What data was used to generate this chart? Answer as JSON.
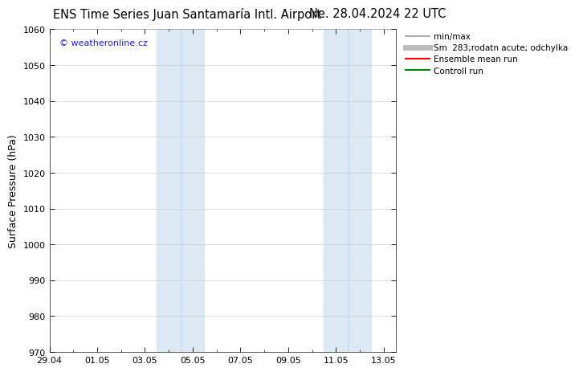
{
  "title_left": "ENS Time Series Juan Santamaría Intl. Airport",
  "title_right": "Ne. 28.04.2024 22 UTC",
  "ylabel": "Surface Pressure (hPa)",
  "ylim": [
    970,
    1060
  ],
  "yticks": [
    970,
    980,
    990,
    1000,
    1010,
    1020,
    1030,
    1040,
    1050,
    1060
  ],
  "xtick_labels": [
    "29.04",
    "01.05",
    "03.05",
    "05.05",
    "07.05",
    "09.05",
    "11.05",
    "13.05"
  ],
  "xtick_positions": [
    0,
    2,
    4,
    6,
    8,
    10,
    12,
    14
  ],
  "xlim": [
    0,
    14.5
  ],
  "shaded_bands": [
    {
      "x_start": 4.5,
      "x_end": 6.5,
      "color": "#dce9f5"
    },
    {
      "x_start": 11.5,
      "x_end": 13.5,
      "color": "#dce9f5"
    }
  ],
  "band_dividers": [
    5.5,
    12.5
  ],
  "copyright_text": "© weatheronline.cz",
  "copyright_color": "#1a1aff",
  "legend_entries": [
    {
      "label": "min/max",
      "color": "#999999",
      "lw": 1.2
    },
    {
      "label": "Sm  283;rodatn acute; odchylka",
      "color": "#bbbbbb",
      "lw": 5
    },
    {
      "label": "Ensemble mean run",
      "color": "#ff0000",
      "lw": 1.5
    },
    {
      "label": "Controll run",
      "color": "#008000",
      "lw": 1.5
    }
  ],
  "bg_color": "#ffffff",
  "grid_color": "#cccccc",
  "title_fontsize": 10.5,
  "ylabel_fontsize": 9,
  "tick_fontsize": 8,
  "legend_fontsize": 7.5,
  "copyright_fontsize": 8
}
